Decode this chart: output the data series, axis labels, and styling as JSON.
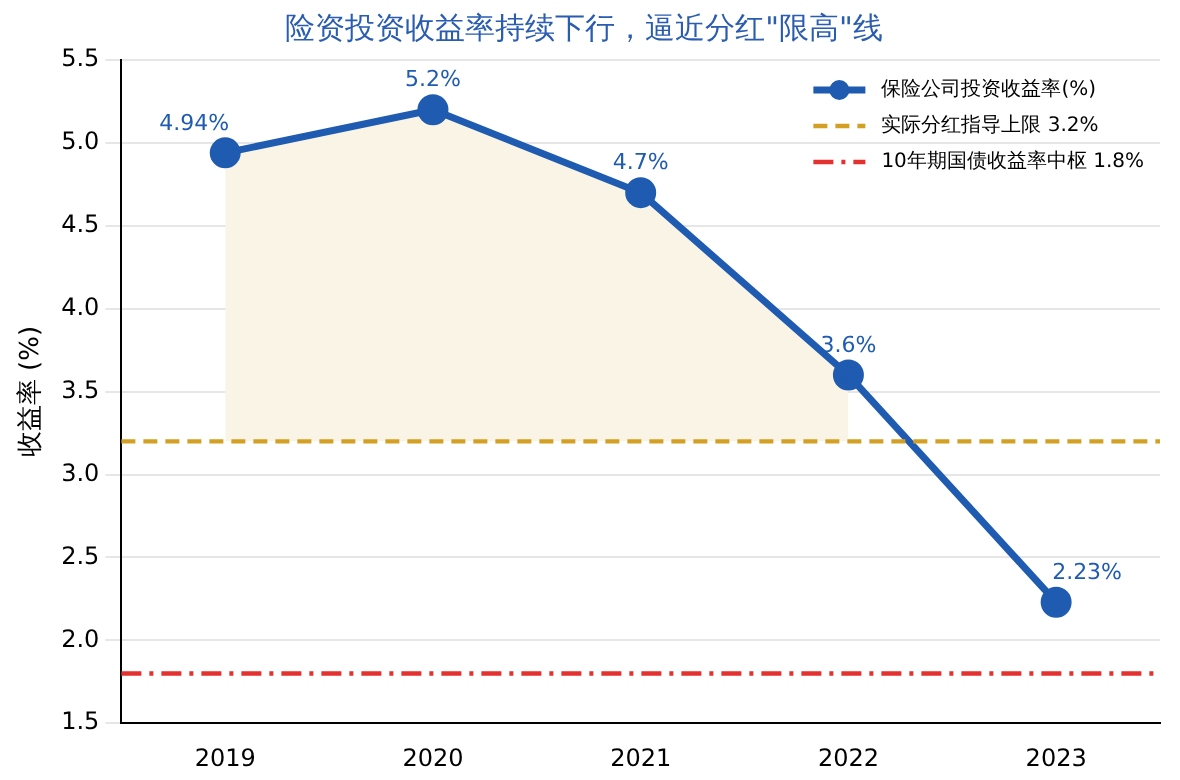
{
  "chart_data": {
    "type": "line",
    "title": "险资投资收益率持续下行，逼近分红\"限高\"线",
    "ylabel": "收益率 (%)",
    "categories": [
      "2019",
      "2020",
      "2021",
      "2022",
      "2023"
    ],
    "series": [
      {
        "name": "保险公司投资收益率(%)",
        "color": "#1f5bb0",
        "marker": "circle",
        "values": [
          4.94,
          5.2,
          4.7,
          3.6,
          2.23
        ],
        "value_labels": [
          "4.94%",
          "5.2%",
          "4.7%",
          "3.6%",
          "2.23%"
        ]
      },
      {
        "type": "area",
        "color": "#f9f4e6",
        "values": [
          4.94,
          5.2,
          4.7,
          3.6,
          null
        ]
      }
    ],
    "ref_lines": [
      {
        "axis": "y",
        "value": 3.2,
        "label": "实际分红指导上限 3.2%",
        "color": "#d4a024",
        "line_style": "dashed"
      },
      {
        "axis": "y",
        "value": 1.8,
        "label": "10年期国债收益率中枢 1.8%",
        "color": "#e53030",
        "line_style": "dashdot"
      }
    ],
    "ylim": [
      1.5,
      5.5
    ],
    "yticks": [
      1.5,
      {
        "value": 2,
        "label": "2.0"
      },
      2.5,
      {
        "value": 3,
        "label": "3.0"
      },
      3.5,
      {
        "value": 4,
        "label": "4.0"
      },
      4.5,
      {
        "value": 5,
        "label": "5.0"
      },
      5.5
    ],
    "grid": "y",
    "legend": "top right",
    "line_style": "solid"
  }
}
